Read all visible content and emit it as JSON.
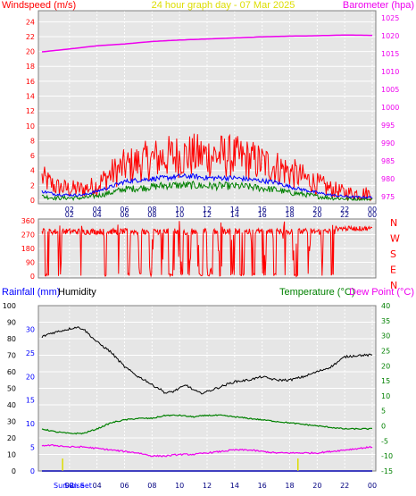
{
  "title": "24 hour graph day - 07 Mar 2025",
  "colors": {
    "wind": "#ff0000",
    "avg_wind": "#0000ff",
    "low_wind": "#008000",
    "barometer": "#ee00ee",
    "direction": "#ff0000",
    "humidity": "#000000",
    "temperature": "#008000",
    "dewpoint": "#ee00ee",
    "rainfall": "#0000ff",
    "sun": "#dddd00",
    "plot_bg": "#e6e6e6",
    "grid": "#ffffff"
  },
  "x_ticks": [
    "02",
    "04",
    "06",
    "08",
    "10",
    "12",
    "14",
    "16",
    "18",
    "20",
    "22",
    "00"
  ],
  "chart_data": [
    {
      "type": "line",
      "left_axis": {
        "label": "Windspeed (m/s)",
        "ticks": [
          "0",
          "2",
          "4",
          "6",
          "8",
          "10",
          "12",
          "14",
          "16",
          "18",
          "20",
          "22",
          "24"
        ],
        "range": [
          0,
          25
        ]
      },
      "right_axis": {
        "label": "Barometer (hpa)",
        "ticks": [
          "975",
          "980",
          "985",
          "990",
          "995",
          "1000",
          "1005",
          "1010",
          "1015",
          "1020",
          "1025"
        ],
        "range": [
          974,
          1026
        ]
      },
      "x_range_hours": [
        0,
        24
      ],
      "series": [
        {
          "key": "gust",
          "x": [
            0,
            1,
            2,
            3,
            4,
            5,
            6,
            7,
            8,
            9,
            10,
            11,
            12,
            13,
            14,
            15,
            16,
            17,
            18,
            19,
            20,
            21,
            22,
            23,
            24
          ],
          "y": [
            3,
            1.8,
            1.5,
            1.5,
            2,
            3.5,
            4.5,
            5,
            5.5,
            5.8,
            6,
            6,
            6,
            6,
            5.8,
            5.5,
            5,
            4.5,
            3.8,
            3,
            2.2,
            1.5,
            1,
            0.9,
            0.9
          ]
        },
        {
          "key": "avg",
          "x": [
            0,
            1,
            2,
            3,
            4,
            5,
            6,
            7,
            8,
            9,
            10,
            11,
            12,
            13,
            14,
            15,
            16,
            17,
            18,
            19,
            20,
            21,
            22,
            23,
            24
          ],
          "y": [
            1.2,
            0.8,
            0.7,
            0.7,
            1.2,
            1.8,
            2.5,
            2.7,
            2.9,
            3,
            3.2,
            3.2,
            3,
            3,
            3,
            2.8,
            2.6,
            2.4,
            1.8,
            1.4,
            1,
            0.7,
            0.5,
            0.4,
            0.4
          ]
        },
        {
          "key": "low",
          "x": [
            0,
            1,
            2,
            3,
            4,
            5,
            6,
            7,
            8,
            9,
            10,
            11,
            12,
            13,
            14,
            15,
            16,
            17,
            18,
            19,
            20,
            21,
            22,
            23,
            24
          ],
          "y": [
            0.5,
            0.3,
            0.3,
            0.3,
            0.6,
            1,
            1.5,
            1.6,
            1.8,
            2,
            2,
            2,
            1.9,
            1.9,
            1.9,
            1.8,
            1.6,
            1.4,
            1,
            0.8,
            0.5,
            0.3,
            0.2,
            0.1,
            0.1
          ]
        },
        {
          "key": "pressure",
          "x": [
            0,
            2,
            4,
            6,
            8,
            10,
            12,
            14,
            16,
            18,
            20,
            22,
            24
          ],
          "y": [
            1015.5,
            1016.3,
            1017.2,
            1017.7,
            1018.4,
            1018.8,
            1019.1,
            1019.4,
            1019.7,
            1019.9,
            1020,
            1020.2,
            1020.1
          ]
        }
      ]
    },
    {
      "type": "line",
      "left_axis": {
        "ticks": [
          "0",
          "90",
          "180",
          "270",
          "360"
        ],
        "range": [
          0,
          360
        ]
      },
      "right_axis": {
        "ticks": [
          "N",
          "W",
          "S",
          "E",
          "N"
        ]
      },
      "x_range_hours": [
        0,
        24
      ],
      "series": [
        {
          "key": "direction",
          "base_deg": 290,
          "drops": [
            [
              0.2,
              0.5
            ],
            [
              1.2,
              1.4
            ],
            [
              2.8,
              2.9
            ],
            [
              4.5,
              4.7
            ],
            [
              5.5,
              5.6
            ],
            [
              6.2,
              6.4
            ],
            [
              7,
              7.2
            ],
            [
              7.8,
              8.1
            ],
            [
              8.6,
              8.8
            ],
            [
              9.2,
              9.6
            ],
            [
              9.9,
              10.3
            ],
            [
              10.6,
              10.8
            ],
            [
              11.3,
              11.7
            ],
            [
              12,
              12.4
            ],
            [
              12.8,
              13.2
            ],
            [
              13.7,
              14
            ],
            [
              14.4,
              14.7
            ],
            [
              15.2,
              15.5
            ],
            [
              16,
              16.3
            ],
            [
              16.8,
              17
            ],
            [
              17.5,
              17.7
            ],
            [
              18.2,
              18.6
            ],
            [
              19.3,
              19.5
            ],
            [
              20.3,
              20.4
            ],
            [
              21,
              21.2
            ]
          ]
        }
      ]
    },
    {
      "type": "line",
      "left_axis": {
        "label": "Rainfall (mm)",
        "label2": "Humidity",
        "ticks": [
          "0",
          "10",
          "20",
          "30",
          "40",
          "50",
          "60",
          "70",
          "80",
          "90",
          "100"
        ],
        "range": [
          0,
          100
        ]
      },
      "rain_axis": {
        "ticks": [
          "0",
          "5",
          "10",
          "15",
          "20",
          "25",
          "30"
        ],
        "range": [
          0,
          35
        ]
      },
      "right_axis": {
        "label": "Temperature (°C)",
        "label2": "Dew Point (°C)",
        "ticks": [
          "-15",
          "-10",
          "-5",
          "0",
          "5",
          "10",
          "15",
          "20",
          "25",
          "30",
          "35",
          "40"
        ],
        "range": [
          -15,
          40
        ]
      },
      "x_range_hours": [
        0,
        24
      ],
      "sun_labels": {
        "rise": "Sun Rise",
        "set": "Sun Set"
      },
      "sun_hours": [
        1.5,
        18.6
      ],
      "series": [
        {
          "key": "humidity",
          "x": [
            0,
            0.5,
            1,
            2,
            2.5,
            3,
            3.5,
            4,
            5,
            6,
            7,
            7.5,
            8,
            8.5,
            9,
            9.5,
            10,
            10.5,
            11,
            11.5,
            12,
            13,
            14,
            15,
            16,
            17,
            18,
            19,
            20,
            21,
            22,
            23,
            24
          ],
          "y": [
            81,
            83,
            84,
            86,
            87,
            86,
            82,
            78,
            72,
            63,
            57,
            55,
            52,
            50,
            47,
            48,
            50,
            52,
            49,
            47,
            48,
            51,
            54,
            55,
            57,
            55,
            55,
            57,
            60,
            63,
            69,
            70,
            70
          ]
        },
        {
          "key": "temperature",
          "x": [
            0,
            1,
            2,
            3,
            4,
            5,
            6,
            7,
            8,
            9,
            10,
            11,
            12,
            13,
            14,
            15,
            16,
            17,
            18,
            19,
            20,
            21,
            22,
            23,
            24
          ],
          "y": [
            -1,
            -2,
            -2.5,
            -2.5,
            -1,
            1,
            2,
            2.5,
            2.5,
            3.5,
            3.5,
            3,
            3.5,
            3.5,
            3,
            2.5,
            2,
            1.5,
            1,
            0.5,
            0,
            -0.5,
            -1,
            -1,
            -1
          ]
        },
        {
          "key": "dewpoint",
          "x": [
            0,
            1,
            2,
            3,
            4,
            5,
            6,
            7,
            8,
            9,
            10,
            11,
            12,
            13,
            14,
            15,
            16,
            17,
            18,
            19,
            20,
            21,
            22,
            23,
            24
          ],
          "y": [
            -6.5,
            -6.5,
            -7,
            -7,
            -7.5,
            -8,
            -8.5,
            -9,
            -10,
            -10,
            -9.5,
            -9.5,
            -9,
            -8.5,
            -8,
            -8,
            -8.5,
            -9,
            -9,
            -9,
            -9,
            -8.5,
            -8,
            -7.5,
            -7
          ]
        },
        {
          "key": "rain",
          "x": [
            0,
            24
          ],
          "y": [
            0,
            0
          ]
        }
      ]
    }
  ]
}
